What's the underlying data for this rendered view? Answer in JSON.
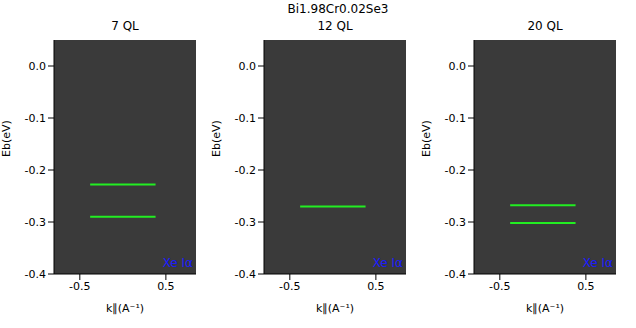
{
  "title": "Bi1.98Cr0.02Se3",
  "chart_data": [
    {
      "type": "image",
      "title": "7 QL",
      "x_label": "k∥(A⁻¹)",
      "y_label": "Eb(eV)",
      "annotation": "Xe Iα",
      "xlim": [
        -0.8,
        0.85
      ],
      "xticks": [
        -0.5,
        0.5
      ],
      "ylim": [
        -0.4,
        0.05
      ],
      "yticks": [
        {
          "value": 0,
          "label": "0.0"
        },
        -0.1,
        -0.2,
        -0.3,
        -0.4
      ],
      "lines": {
        "y": [
          -0.228,
          -0.29
        ],
        "x": [
          -0.38,
          0.38
        ],
        "color": "#22ee22"
      }
    },
    {
      "type": "image",
      "title": "12 QL",
      "x_label": "k∥(A⁻¹)",
      "y_label": "Eb(eV)",
      "annotation": "Xe Iα",
      "xlim": [
        -0.8,
        0.85
      ],
      "xticks": [
        -0.5,
        0.5
      ],
      "ylim": [
        -0.4,
        0.05
      ],
      "yticks": [
        {
          "value": 0,
          "label": "0.0"
        },
        -0.1,
        -0.2,
        -0.3,
        -0.4
      ],
      "lines": {
        "y": [
          -0.27
        ],
        "x": [
          -0.38,
          0.38
        ],
        "color": "#22ee22"
      }
    },
    {
      "type": "image",
      "title": "20 QL",
      "x_label": "k∥(A⁻¹)",
      "y_label": "Eb(eV)",
      "annotation": "Xe Iα",
      "xlim": [
        -0.8,
        0.85
      ],
      "xticks": [
        -0.5,
        0.5
      ],
      "ylim": [
        -0.4,
        0.05
      ],
      "yticks": [
        {
          "value": 0,
          "label": "0.0"
        },
        -0.1,
        -0.2,
        -0.3,
        -0.4
      ],
      "lines": {
        "y": [
          -0.268,
          -0.302
        ],
        "x": [
          -0.38,
          0.38
        ],
        "color": "#22ee22"
      }
    }
  ]
}
